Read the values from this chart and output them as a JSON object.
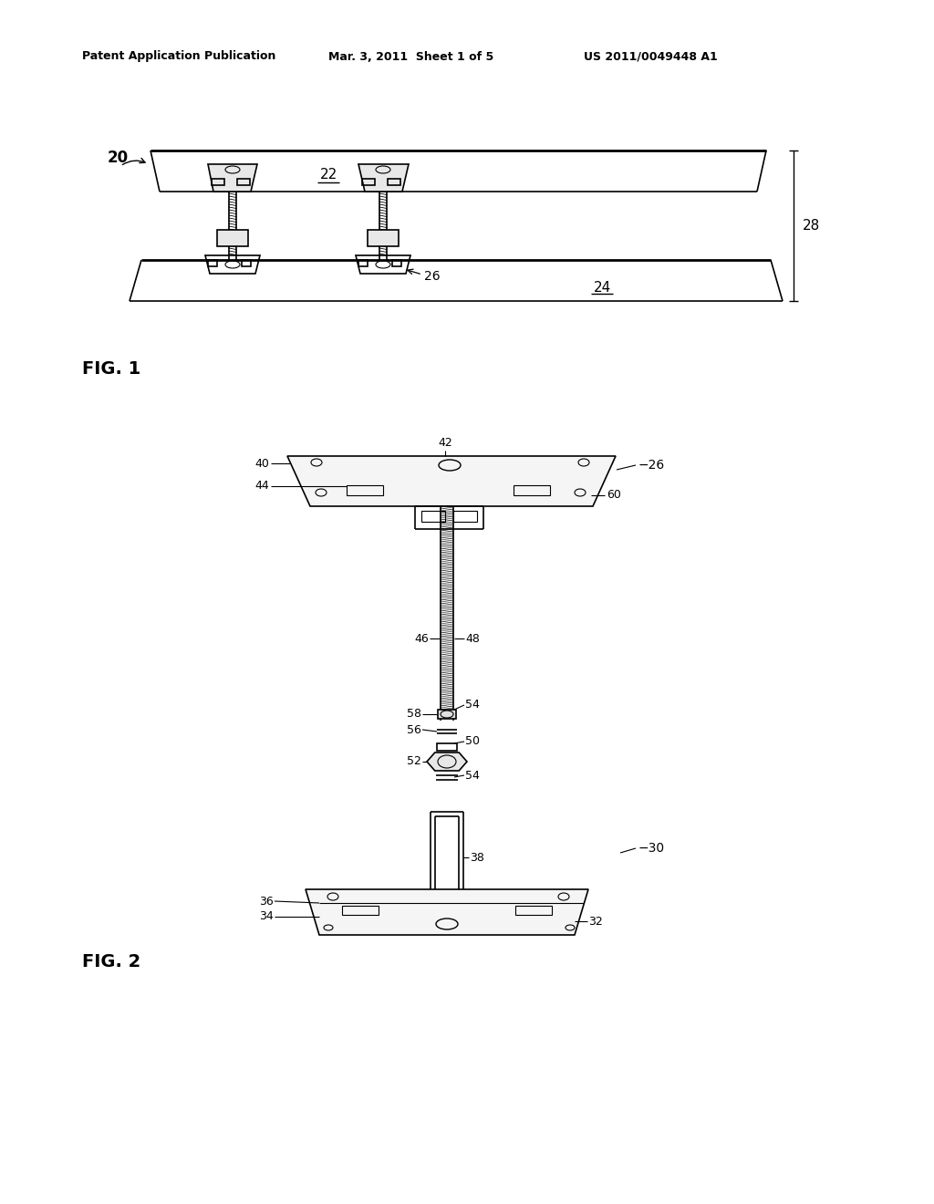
{
  "bg_color": "#ffffff",
  "header_left": "Patent Application Publication",
  "header_mid": "Mar. 3, 2011  Sheet 1 of 5",
  "header_right": "US 2011/0049448 A1",
  "fig1_label": "FIG. 1",
  "fig2_label": "FIG. 2",
  "line_color": "#000000",
  "line_width": 1.2,
  "thick_line": 2.0
}
